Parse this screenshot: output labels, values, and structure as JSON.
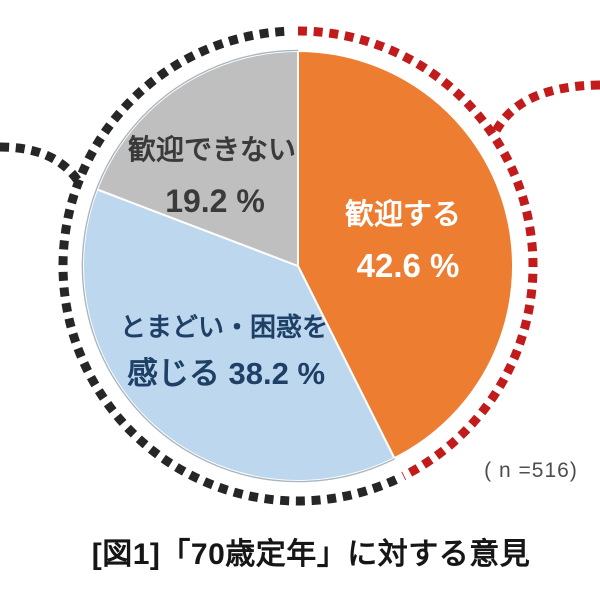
{
  "chart_data": {
    "type": "pie",
    "title": "[図1]「70歳定年」に対する意見",
    "sample_size_label": "( n =516)",
    "start_angle_deg": 0,
    "direction": "clockwise",
    "grid": false,
    "legend": "none",
    "slices": [
      {
        "name": "歓迎する",
        "value": 42.6,
        "color": "#ED7D31",
        "label_lines": [
          "歓迎する",
          "42.6 %"
        ],
        "label_color": "#FFFFFF"
      },
      {
        "name": "とまどい・困惑を感じる",
        "value": 38.2,
        "color": "#BDD7EE",
        "label_lines": [
          "とまどい・困惑を",
          "感じる 38.2 %"
        ],
        "label_color": "#1F4066"
      },
      {
        "name": "歓迎できない",
        "value": 19.2,
        "color": "#BFBFBF",
        "label_lines": [
          "歓迎できない",
          "19.2 %"
        ],
        "label_color": "#3A3A3A"
      }
    ],
    "annotations": {
      "highlight_ring": {
        "style": "dashed",
        "red_color": "#C11B1B",
        "black_color": "#262626",
        "red_arc_highlights": "歓迎する"
      }
    }
  }
}
